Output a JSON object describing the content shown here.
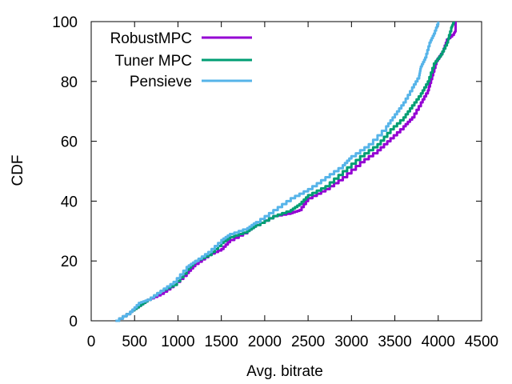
{
  "chart_data": {
    "type": "line",
    "xlabel": "Avg. bitrate",
    "ylabel": "CDF",
    "xlim": [
      0,
      4500
    ],
    "ylim": [
      0,
      100
    ],
    "xticks": [
      "0",
      "500",
      "1000",
      "1500",
      "2000",
      "2500",
      "3000",
      "3500",
      "4000",
      "4500"
    ],
    "yticks": [
      "0",
      "20",
      "40",
      "60",
      "80",
      "100"
    ],
    "grid": false,
    "legend_position": "top-left",
    "series": [
      {
        "name": "RobustMPC",
        "color": "#9400d3",
        "points": [
          [
            280,
            0
          ],
          [
            450,
            3
          ],
          [
            550,
            5
          ],
          [
            650,
            7
          ],
          [
            800,
            9
          ],
          [
            950,
            12
          ],
          [
            1100,
            16
          ],
          [
            1200,
            19
          ],
          [
            1350,
            22
          ],
          [
            1500,
            24
          ],
          [
            1600,
            27
          ],
          [
            1800,
            30
          ],
          [
            1900,
            32
          ],
          [
            2100,
            35
          ],
          [
            2300,
            36
          ],
          [
            2400,
            37
          ],
          [
            2500,
            41
          ],
          [
            2700,
            44
          ],
          [
            2900,
            48
          ],
          [
            3100,
            53
          ],
          [
            3300,
            57
          ],
          [
            3450,
            61
          ],
          [
            3600,
            65
          ],
          [
            3700,
            68
          ],
          [
            3800,
            73
          ],
          [
            3880,
            77
          ],
          [
            3930,
            82
          ],
          [
            3980,
            87
          ],
          [
            4050,
            90
          ],
          [
            4100,
            94
          ],
          [
            4180,
            96
          ],
          [
            4200,
            97
          ],
          [
            4200,
            100
          ]
        ]
      },
      {
        "name": "Tuner MPC",
        "color": "#009e73",
        "points": [
          [
            280,
            0
          ],
          [
            450,
            3
          ],
          [
            550,
            5
          ],
          [
            650,
            7
          ],
          [
            800,
            10
          ],
          [
            950,
            12
          ],
          [
            1100,
            17
          ],
          [
            1200,
            20
          ],
          [
            1350,
            22
          ],
          [
            1500,
            26
          ],
          [
            1600,
            28
          ],
          [
            1800,
            30
          ],
          [
            1900,
            32
          ],
          [
            2100,
            35
          ],
          [
            2300,
            37
          ],
          [
            2400,
            39
          ],
          [
            2500,
            42
          ],
          [
            2700,
            45
          ],
          [
            2900,
            50
          ],
          [
            3100,
            55
          ],
          [
            3300,
            59
          ],
          [
            3450,
            64
          ],
          [
            3600,
            68
          ],
          [
            3700,
            72
          ],
          [
            3800,
            76
          ],
          [
            3880,
            80
          ],
          [
            3950,
            86
          ],
          [
            4030,
            89
          ],
          [
            4100,
            93
          ],
          [
            4150,
            98
          ],
          [
            4180,
            100
          ]
        ]
      },
      {
        "name": "Pensieve",
        "color": "#56b4e9",
        "points": [
          [
            280,
            0
          ],
          [
            450,
            3
          ],
          [
            550,
            6
          ],
          [
            650,
            7
          ],
          [
            800,
            10
          ],
          [
            950,
            13
          ],
          [
            1100,
            18
          ],
          [
            1200,
            20
          ],
          [
            1350,
            23
          ],
          [
            1500,
            27
          ],
          [
            1600,
            29
          ],
          [
            1800,
            31
          ],
          [
            1900,
            33
          ],
          [
            2100,
            37
          ],
          [
            2300,
            41
          ],
          [
            2500,
            44
          ],
          [
            2700,
            48
          ],
          [
            2900,
            52
          ],
          [
            3000,
            55
          ],
          [
            3200,
            59
          ],
          [
            3400,
            65
          ],
          [
            3500,
            69
          ],
          [
            3600,
            73
          ],
          [
            3700,
            78
          ],
          [
            3780,
            82
          ],
          [
            3800,
            85
          ],
          [
            3850,
            88
          ],
          [
            3900,
            93
          ],
          [
            3950,
            96
          ],
          [
            4000,
            100
          ]
        ]
      }
    ]
  }
}
